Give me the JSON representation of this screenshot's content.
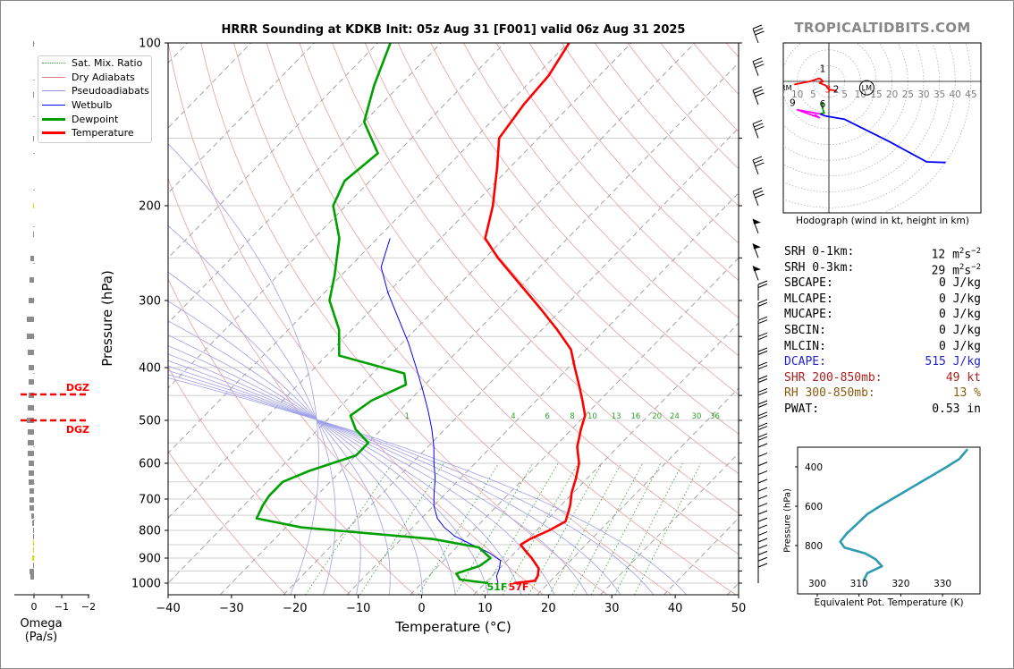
{
  "title": "HRRR Sounding at KDKB Init: 05z Aug 31 [F001] valid 06z Aug 31 2025",
  "brand": "TROPICALTIDBITS.COM",
  "legend": [
    {
      "label": "Sat. Mix. Ratio",
      "color": "#2ca02c",
      "style": "dotted"
    },
    {
      "label": "Dry Adiabats",
      "color": "#e08080",
      "style": "solid"
    },
    {
      "label": "Pseudoadiabats",
      "color": "#9090e0",
      "style": "solid"
    },
    {
      "label": "Wetbulb",
      "color": "#0000ff",
      "style": "solid"
    },
    {
      "label": "Dewpoint",
      "color": "#00a000",
      "style": "thick"
    },
    {
      "label": "Temperature",
      "color": "#ff0000",
      "style": "thick"
    }
  ],
  "skewt": {
    "xlabel": "Temperature (°C)",
    "ylabel": "Pressure (hPa)",
    "x_ticks": [
      "−40",
      "−30",
      "−20",
      "−10",
      "0",
      "10",
      "20",
      "30",
      "40",
      "50"
    ],
    "y_ticks": [
      "100",
      "200",
      "300",
      "400",
      "500",
      "600",
      "700",
      "800",
      "900",
      "1000"
    ],
    "mix_ratio_labels": [
      "1",
      "4",
      "6",
      "8",
      "10",
      "13",
      "16",
      "20",
      "24",
      "30",
      "36"
    ],
    "surface_dewpoint_label": "51F",
    "surface_temp_label": "57F"
  },
  "omega": {
    "xlabel": "Omega (Pa/s)",
    "x_ticks": [
      "0",
      "−1",
      "−2"
    ],
    "dgz_label_top": "DGZ",
    "dgz_label_bottom": "DGZ"
  },
  "hodograph": {
    "caption": "Hodograph (wind in kt, height in km)",
    "ring_labels": [
      "10",
      "5",
      "5",
      "10",
      "15",
      "20",
      "25",
      "30",
      "35",
      "40",
      "45"
    ],
    "height_labels": [
      "1",
      "3",
      "2",
      "9",
      "6"
    ],
    "rm_label": "RM",
    "lm_label": "LM"
  },
  "stats": [
    {
      "label": "SRH 0-1km:",
      "value": "12",
      "unit": "m2s-2",
      "color": "#000000"
    },
    {
      "label": "SRH 0-3km:",
      "value": "29",
      "unit": "m2s-2",
      "color": "#000000"
    },
    {
      "label": "SBCAPE:",
      "value": "0 J/kg",
      "color": "#000000"
    },
    {
      "label": "MLCAPE:",
      "value": "0 J/kg",
      "color": "#000000"
    },
    {
      "label": "MUCAPE:",
      "value": "0 J/kg",
      "color": "#000000"
    },
    {
      "label": "SBCIN:",
      "value": "0 J/kg",
      "color": "#000000"
    },
    {
      "label": "MLCIN:",
      "value": "0 J/kg",
      "color": "#000000"
    },
    {
      "label": "DCAPE:",
      "value": "515 J/kg",
      "color": "#2222cc"
    },
    {
      "label": "SHR 200-850mb:",
      "value": "49 kt",
      "color": "#aa2222"
    },
    {
      "label": "RH 300-850mb:",
      "value": "13 %",
      "color": "#8a5a10"
    },
    {
      "label": "PWAT:",
      "value": "0.53 in",
      "color": "#000000"
    }
  ],
  "theta": {
    "xlabel": "Equivalent Pot. Temperature (K)",
    "ylabel": "Pressure (hPa)",
    "x_ticks": [
      "300",
      "310",
      "320",
      "330"
    ],
    "y_ticks": [
      "400",
      "600",
      "800"
    ]
  },
  "chart_data": [
    {
      "type": "line",
      "title": "HRRR Sounding at KDKB Init: 05z Aug 31 [F001] valid 06z Aug 31 2025",
      "xlabel": "Temperature (°C)",
      "ylabel": "Pressure (hPa)",
      "y_scale": "log",
      "xlim": [
        -40,
        50
      ],
      "ylim": [
        1050,
        100
      ],
      "skew": "skew-T",
      "series": [
        {
          "name": "Temperature",
          "color": "#ff0000",
          "points": [
            [
              1000,
              14.5
            ],
            [
              990,
              17.5
            ],
            [
              970,
              17.2
            ],
            [
              940,
              16.2
            ],
            [
              900,
              13.5
            ],
            [
              870,
              11.2
            ],
            [
              850,
              9.7
            ],
            [
              830,
              10.3
            ],
            [
              800,
              12.0
            ],
            [
              770,
              13.2
            ],
            [
              720,
              11.5
            ],
            [
              680,
              9.7
            ],
            [
              640,
              8.2
            ],
            [
              600,
              6.4
            ],
            [
              560,
              3.6
            ],
            [
              520,
              1.5
            ],
            [
              490,
              0.0
            ],
            [
              460,
              -2.7
            ],
            [
              430,
              -5.7
            ],
            [
              400,
              -9.0
            ],
            [
              370,
              -12.4
            ],
            [
              340,
              -17.6
            ],
            [
              310,
              -23.6
            ],
            [
              280,
              -30.4
            ],
            [
              250,
              -38.0
            ],
            [
              230,
              -43.0
            ],
            [
              200,
              -46.8
            ],
            [
              170,
              -52.0
            ],
            [
              150,
              -56.2
            ],
            [
              130,
              -57.5
            ],
            [
              115,
              -58.0
            ],
            [
              100,
              -59.8
            ]
          ]
        },
        {
          "name": "Dewpoint",
          "color": "#00a000",
          "points": [
            [
              1000,
              10.5
            ],
            [
              985,
              5.5
            ],
            [
              960,
              4.0
            ],
            [
              930,
              6.5
            ],
            [
              900,
              7.0
            ],
            [
              860,
              3.5
            ],
            [
              830,
              -5.0
            ],
            [
              790,
              -27.5
            ],
            [
              760,
              -36.0
            ],
            [
              720,
              -37.0
            ],
            [
              690,
              -37.5
            ],
            [
              650,
              -37.5
            ],
            [
              620,
              -35.0
            ],
            [
              580,
              -30.0
            ],
            [
              550,
              -30.0
            ],
            [
              520,
              -34.0
            ],
            [
              490,
              -37.0
            ],
            [
              460,
              -36.0
            ],
            [
              430,
              -33.0
            ],
            [
              410,
              -35.0
            ],
            [
              380,
              -48.0
            ],
            [
              340,
              -52.0
            ],
            [
              300,
              -58.0
            ],
            [
              270,
              -61.0
            ],
            [
              230,
              -66.0
            ],
            [
              200,
              -72.0
            ],
            [
              180,
              -74.0
            ],
            [
              160,
              -73.0
            ],
            [
              140,
              -80.0
            ],
            [
              120,
              -84.0
            ],
            [
              100,
              -88.0
            ]
          ]
        },
        {
          "name": "Wetbulb",
          "color": "#0000ff",
          "points": [
            [
              1000,
              12.0
            ],
            [
              970,
              10.7
            ],
            [
              940,
              10.0
            ],
            [
              910,
              9.0
            ],
            [
              880,
              6.0
            ],
            [
              850,
              2.0
            ],
            [
              820,
              -2.0
            ],
            [
              790,
              -5.0
            ],
            [
              760,
              -7.5
            ],
            [
              720,
              -10.0
            ],
            [
              680,
              -12.0
            ],
            [
              640,
              -14.0
            ],
            [
              600,
              -16.5
            ],
            [
              560,
              -19.0
            ],
            [
              520,
              -22.0
            ],
            [
              480,
              -25.5
            ],
            [
              440,
              -29.5
            ],
            [
              400,
              -34.0
            ],
            [
              360,
              -39.0
            ],
            [
              320,
              -45.0
            ],
            [
              290,
              -50.0
            ],
            [
              260,
              -55.0
            ],
            [
              230,
              -58.0
            ]
          ]
        }
      ]
    },
    {
      "type": "line",
      "xlabel": "Equivalent Pot. Temperature (K)",
      "ylabel": "Pressure (hPa)",
      "xlim": [
        296,
        336
      ],
      "ylim": [
        980,
        300
      ],
      "series": [
        {
          "points": [
            [
              980,
              311
            ],
            [
              940,
              312
            ],
            [
              905,
              315.5
            ],
            [
              870,
              314
            ],
            [
              840,
              311.5
            ],
            [
              810,
              306.5
            ],
            [
              780,
              305.5
            ],
            [
              740,
              307
            ],
            [
              690,
              309.5
            ],
            [
              640,
              312
            ],
            [
              600,
              315
            ],
            [
              550,
              319
            ],
            [
              500,
              323
            ],
            [
              450,
              327
            ],
            [
              400,
              331
            ],
            [
              360,
              334
            ],
            [
              310,
              336
            ]
          ]
        }
      ]
    },
    {
      "type": "line",
      "xlabel": "Omega (Pa/s)",
      "xlim": [
        0.3,
        -2.5
      ],
      "ylim": [
        1050,
        100
      ]
    },
    {
      "type": "line",
      "title": "Hodograph (wind in kt, height in km)",
      "xlim": [
        -13,
        47
      ],
      "ylim": [
        -30,
        11
      ],
      "series": [
        {
          "name": "0-3 km",
          "color": "#ff0000",
          "points": [
            [
              -11,
              -1
            ],
            [
              -6,
              0
            ],
            [
              -3,
              1
            ],
            [
              -1.8,
              0
            ],
            [
              -3,
              -0.5
            ],
            [
              -1,
              -1.3
            ],
            [
              0,
              -2.6
            ],
            [
              1.5,
              -2.8
            ],
            [
              2.5,
              -3.0
            ]
          ]
        },
        {
          "name": "3-6 km",
          "color": "#00a000",
          "points": [
            [
              -2,
              -6.5
            ],
            [
              -2,
              -8.5
            ],
            [
              -1.5,
              -10
            ],
            [
              -2.8,
              -10.3
            ]
          ]
        },
        {
          "name": "6-9 km",
          "color": "#ff00ff",
          "points": [
            [
              -2.8,
              -10.3
            ],
            [
              -10,
              -9
            ],
            [
              -3,
              -11.5
            ],
            [
              -4.5,
              -10.5
            ]
          ]
        },
        {
          "name": "9+ km",
          "color": "#0000ff",
          "points": [
            [
              -2.8,
              -10.3
            ],
            [
              -1,
              -11
            ],
            [
              5,
              -12
            ],
            [
              19,
              -19
            ],
            [
              31,
              -25.5
            ],
            [
              37,
              -25.7
            ]
          ]
        }
      ],
      "storm_motion": {
        "RM": [
          -13.5,
          -4
        ],
        "LM": [
          12,
          -4
        ]
      }
    }
  ]
}
